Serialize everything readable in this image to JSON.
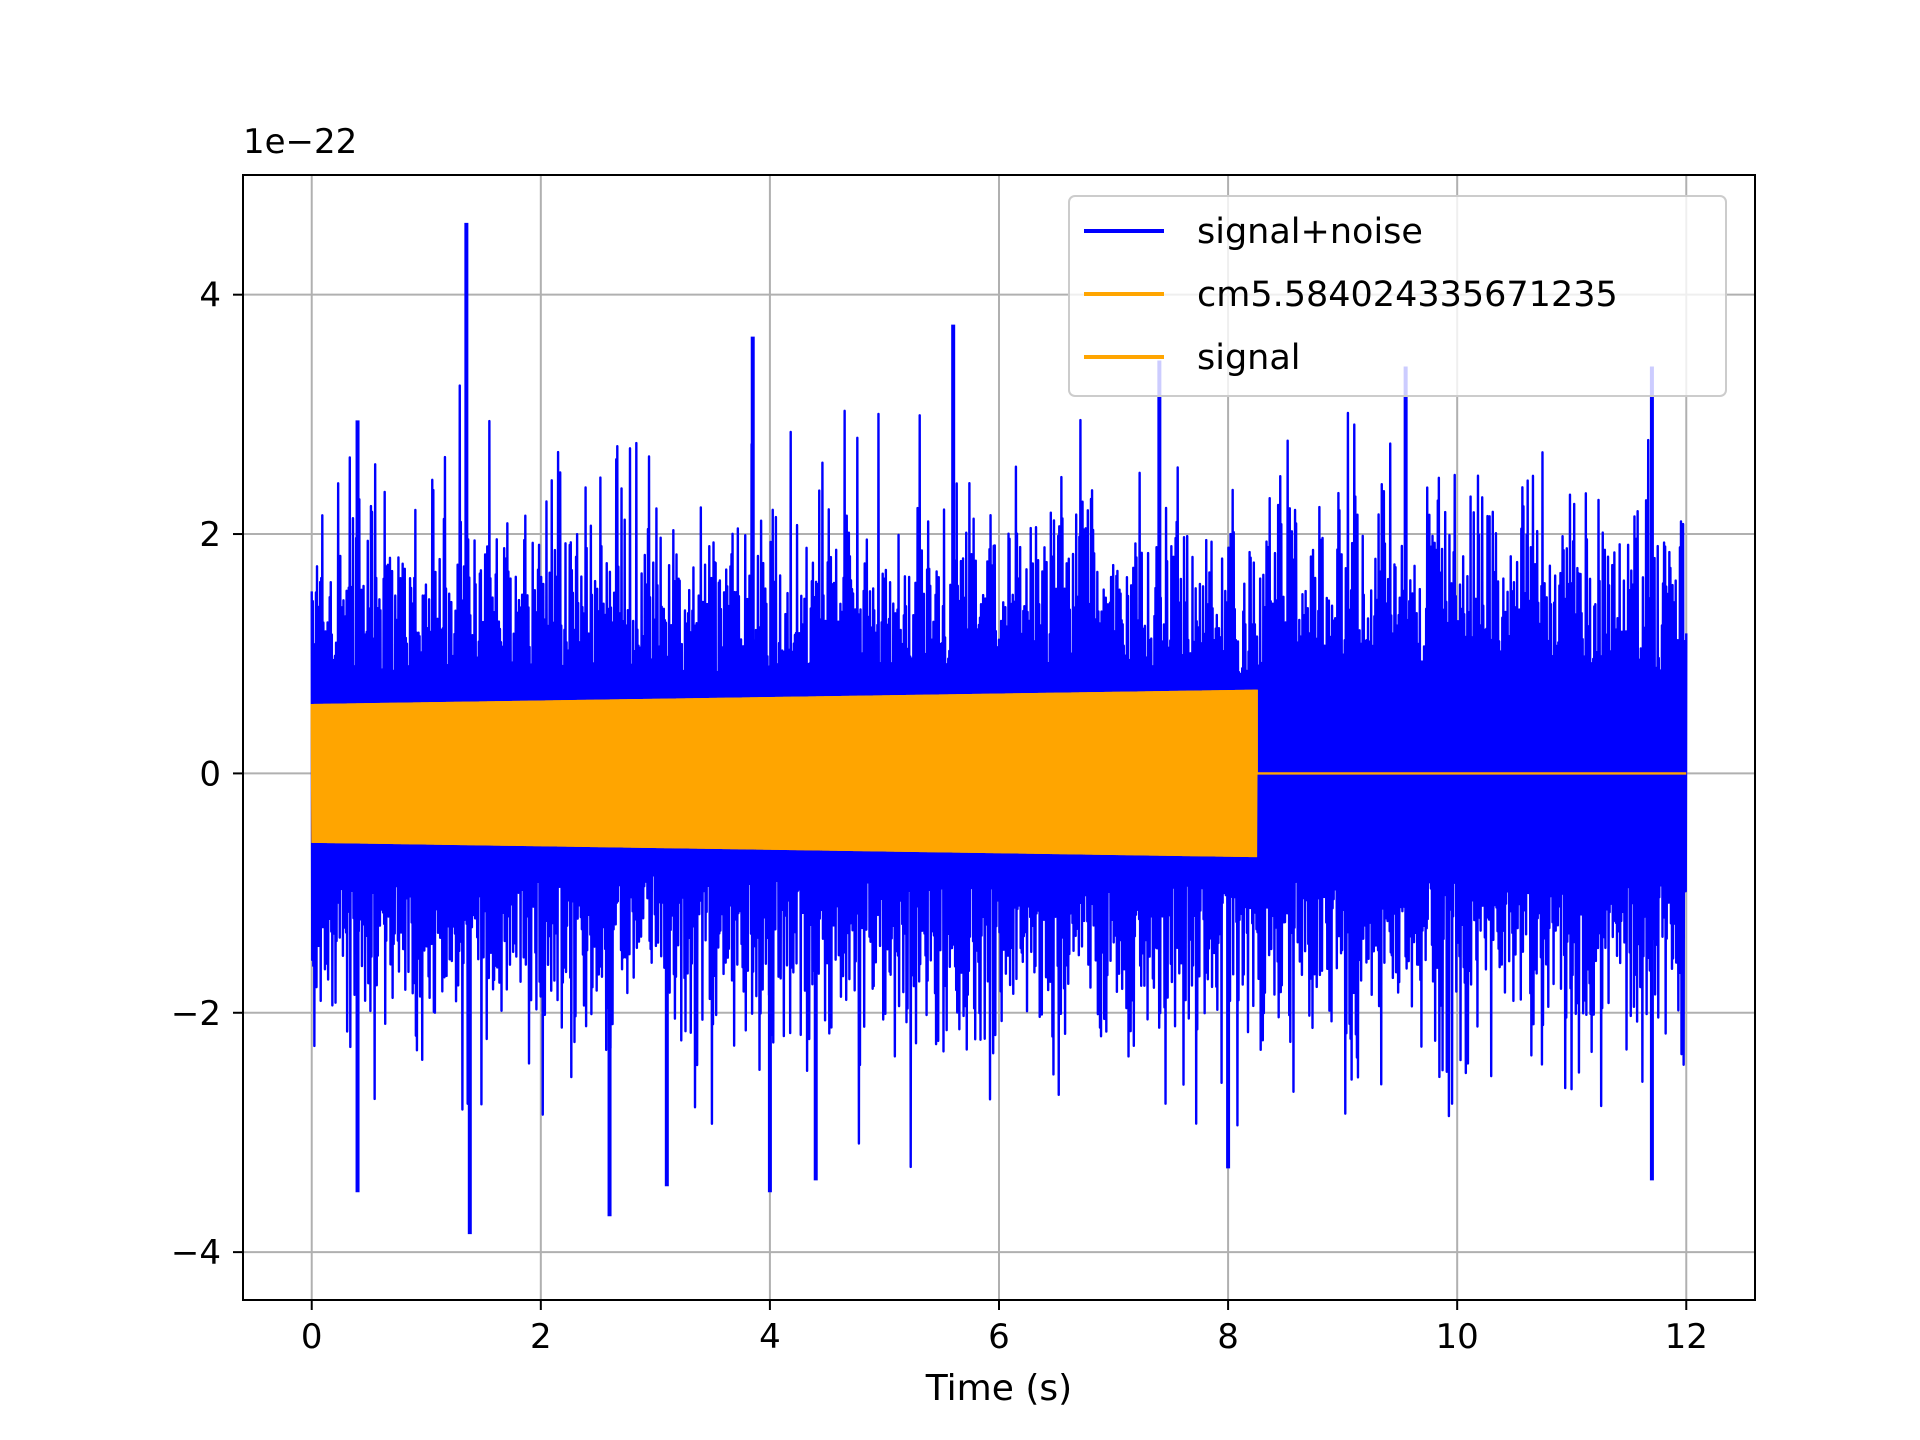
{
  "chart_data": {
    "type": "line",
    "xlabel": "Time (s)",
    "ylabel": "",
    "offset_text": "1e−22",
    "xlim": [
      -0.6,
      12.6
    ],
    "ylim": [
      -4.4,
      5.0
    ],
    "x_ticks": [
      0,
      2,
      4,
      6,
      8,
      10,
      12
    ],
    "x_tick_labels": [
      "0",
      "2",
      "4",
      "6",
      "8",
      "10",
      "12"
    ],
    "y_ticks": [
      -4,
      -2,
      0,
      2,
      4
    ],
    "y_tick_labels": [
      "−4",
      "−2",
      "0",
      "2",
      "4"
    ],
    "grid": true,
    "legend_position": "top-right",
    "series": [
      {
        "name": "signal+noise",
        "color": "#0000ff",
        "kind": "noisy-trace",
        "x_range": [
          0,
          12
        ],
        "typical_envelope": [
          -1.5,
          1.5
        ],
        "notable_peaks": [
          {
            "x": 1.35,
            "y": 4.6
          },
          {
            "x": 5.6,
            "y": 3.75
          },
          {
            "x": 3.85,
            "y": 3.65
          },
          {
            "x": 7.4,
            "y": 3.45
          },
          {
            "x": 9.55,
            "y": 3.4
          },
          {
            "x": 11.7,
            "y": 3.4
          },
          {
            "x": 0.4,
            "y": 2.95
          }
        ],
        "notable_troughs": [
          {
            "x": 1.38,
            "y": -3.85
          },
          {
            "x": 2.6,
            "y": -3.7
          },
          {
            "x": 0.4,
            "y": -3.5
          },
          {
            "x": 3.1,
            "y": -3.45
          },
          {
            "x": 4.0,
            "y": -3.5
          },
          {
            "x": 4.4,
            "y": -3.4
          },
          {
            "x": 11.7,
            "y": -3.4
          },
          {
            "x": 8.0,
            "y": -3.3
          }
        ]
      },
      {
        "name": "cm5.584024335671235",
        "color": "#ffa500",
        "kind": "template",
        "x_range": [
          0,
          8.25
        ],
        "amplitude_start": 0.58,
        "amplitude_end": 0.7
      },
      {
        "name": "signal",
        "color": "#ffa500",
        "kind": "template",
        "x_range": [
          0,
          12
        ],
        "chirp_end": 8.25,
        "amplitude_start": 0.58,
        "amplitude_end": 0.7
      }
    ]
  }
}
